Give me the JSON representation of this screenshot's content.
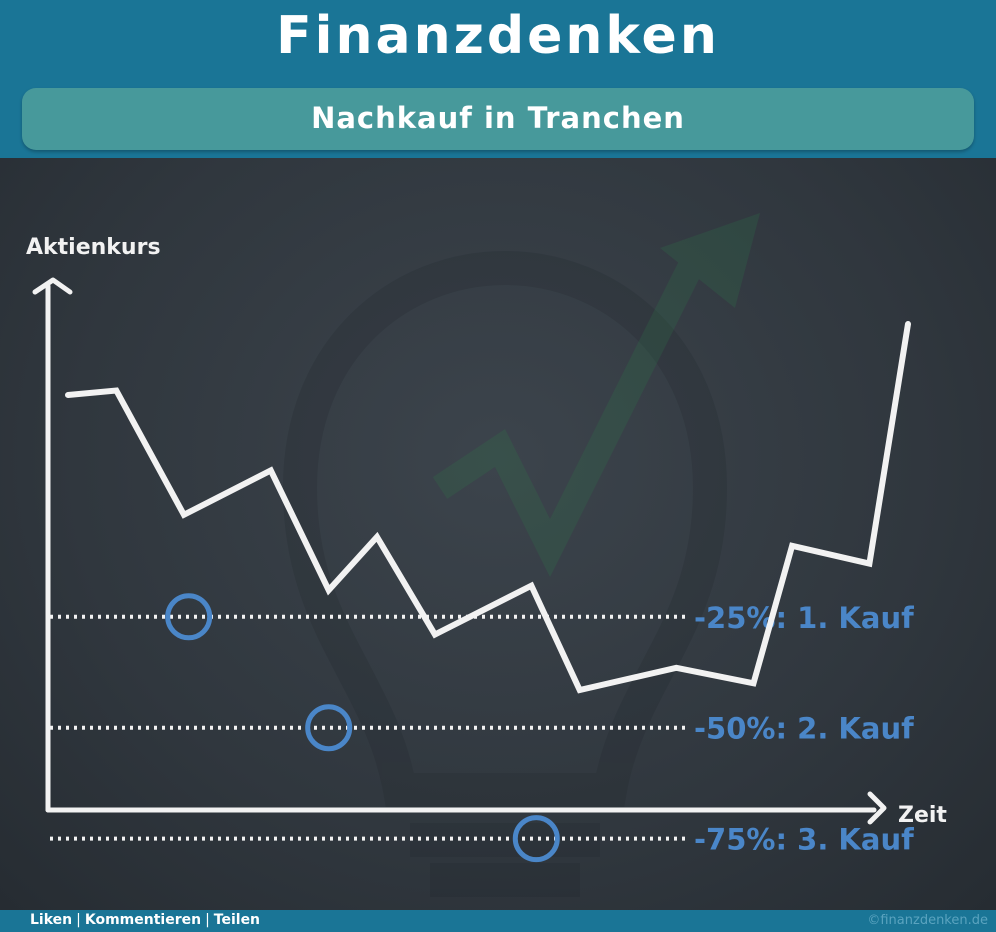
{
  "header": {
    "title": "Finanzdenken",
    "subtitle": "Nachkauf in Tranchen"
  },
  "footer": {
    "links": [
      "Liken",
      "Kommentieren",
      "Teilen"
    ],
    "separator": "|",
    "credit": "©finanzdenken.de"
  },
  "colors": {
    "header_bg": "#1a7596",
    "subtitle_bg": "#47999b",
    "board_bg": "#2f363d",
    "chalk": "#f2f2f2",
    "highlight": "#4a86c8"
  },
  "chart_data": {
    "type": "line",
    "ylabel": "Aktienkurs",
    "xlabel": "Zeit",
    "grid": false,
    "legend": "none",
    "series": [
      {
        "x": [
          0,
          5,
          12,
          21,
          27,
          32,
          38,
          48,
          53,
          63,
          71,
          75,
          83,
          87
        ],
        "values": [
          100,
          102,
          46,
          66,
          12,
          36,
          -8,
          14,
          -33,
          -23,
          -30,
          32,
          24,
          132
        ]
      }
    ],
    "thresholds": [
      {
        "value": 0,
        "label": "-25%: 1. Kauf",
        "marker_x": 12.5
      },
      {
        "value": -50,
        "label": "-50%: 2. Kauf",
        "marker_x": 27
      },
      {
        "value": -100,
        "label": "-75%: 3. Kauf",
        "marker_x": 48.5
      }
    ]
  }
}
